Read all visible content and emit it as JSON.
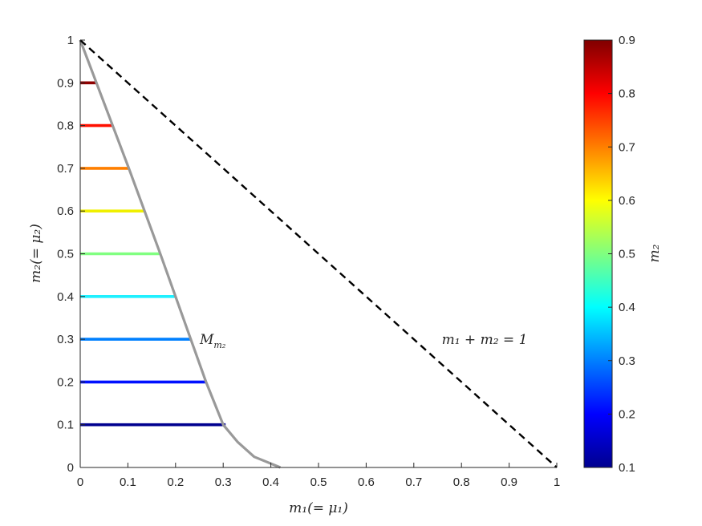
{
  "chart_data": {
    "type": "line",
    "title": "",
    "xlabel": "m₁(= μ₁)",
    "ylabel": "m₂(= μ₂)",
    "xlim": [
      0,
      1
    ],
    "ylim": [
      0,
      1
    ],
    "xticks": [
      "0",
      "0.1",
      "0.2",
      "0.3",
      "0.4",
      "0.5",
      "0.6",
      "0.7",
      "0.8",
      "0.9",
      "1"
    ],
    "yticks": [
      "0",
      "0.1",
      "0.2",
      "0.3",
      "0.4",
      "0.5",
      "0.6",
      "0.7",
      "0.8",
      "0.9",
      "1"
    ],
    "grid": false,
    "boundary_curve": {
      "name": "M_{m₂}",
      "label": "M",
      "label_sub": "m₂",
      "color": "#999999",
      "x": [
        0,
        0.034,
        0.068,
        0.102,
        0.135,
        0.168,
        0.2,
        0.232,
        0.264,
        0.3,
        0.33,
        0.365,
        0.42
      ],
      "y": [
        1,
        0.9,
        0.8,
        0.7,
        0.6,
        0.5,
        0.4,
        0.3,
        0.2,
        0.1,
        0.06,
        0.025,
        0
      ]
    },
    "reference_line": {
      "label": "m₁ + m₂ = 1",
      "style": "dashed",
      "color": "#000000",
      "x": [
        0,
        1
      ],
      "y": [
        1,
        0
      ]
    },
    "segments": [
      {
        "m2": 0.1,
        "x_start": 0,
        "x_end": 0.305,
        "color": "#00008f"
      },
      {
        "m2": 0.2,
        "x_start": 0,
        "x_end": 0.266,
        "color": "#0010ff"
      },
      {
        "m2": 0.3,
        "x_start": 0,
        "x_end": 0.233,
        "color": "#0080ff"
      },
      {
        "m2": 0.4,
        "x_start": 0,
        "x_end": 0.2,
        "color": "#20f0ff"
      },
      {
        "m2": 0.5,
        "x_start": 0,
        "x_end": 0.168,
        "color": "#80ff80"
      },
      {
        "m2": 0.6,
        "x_start": 0,
        "x_end": 0.135,
        "color": "#f0f000"
      },
      {
        "m2": 0.7,
        "x_start": 0,
        "x_end": 0.102,
        "color": "#ff7f00"
      },
      {
        "m2": 0.8,
        "x_start": 0,
        "x_end": 0.068,
        "color": "#ff1000"
      },
      {
        "m2": 0.9,
        "x_start": 0,
        "x_end": 0.034,
        "color": "#8f0000"
      }
    ],
    "colorbar": {
      "label": "m₂",
      "range": [
        0.1,
        0.9
      ],
      "ticks": [
        "0.1",
        "0.2",
        "0.3",
        "0.4",
        "0.5",
        "0.6",
        "0.7",
        "0.8",
        "0.9"
      ],
      "colormap": "jet"
    }
  }
}
